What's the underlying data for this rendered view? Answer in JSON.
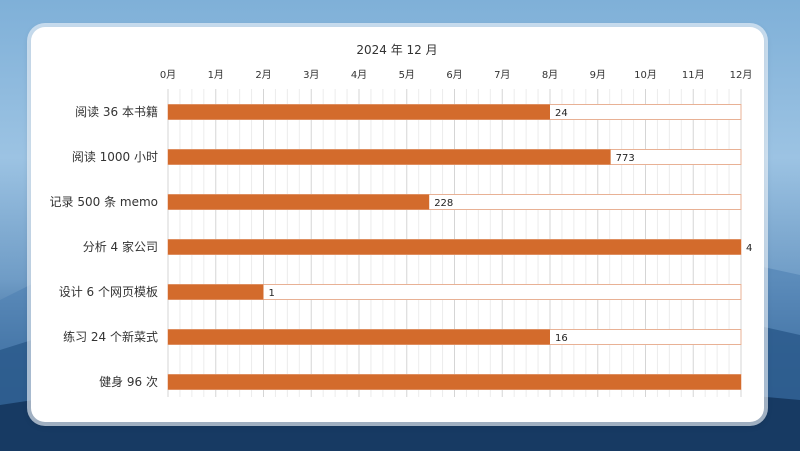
{
  "chart_data": {
    "type": "bar",
    "orientation": "horizontal",
    "title": "2024 年 12 月",
    "x_ticks": [
      "0月",
      "1月",
      "2月",
      "3月",
      "4月",
      "5月",
      "6月",
      "7月",
      "8月",
      "9月",
      "10月",
      "11月",
      "12月"
    ],
    "xlim": [
      0,
      12
    ],
    "grid": true,
    "colors": {
      "progress": "#d36b2c",
      "target_outline": "#e8b195",
      "grid_major": "#d5d5d5",
      "grid_minor": "#ececec"
    },
    "categories": [
      "阅读 36 本书籍",
      "阅读 1000 小时",
      "记录 500 条 memo",
      "分析 4 家公司",
      "设计 6 个网页模板",
      "练习 24 个新菜式",
      "健身 96 次"
    ],
    "values": [
      8,
      9.27,
      5.47,
      12,
      2,
      8,
      12
    ],
    "labels": [
      "24",
      "773",
      "228",
      "4",
      "1",
      "16",
      ""
    ]
  }
}
